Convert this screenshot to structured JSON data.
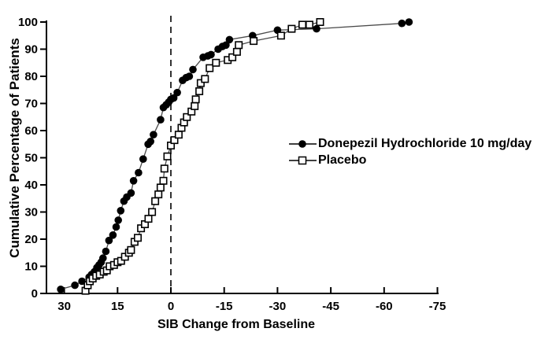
{
  "background_color": "#ffffff",
  "foreground_color": "#000000",
  "chart_data": {
    "type": "line",
    "subtype": "cumulative-distribution",
    "title": "",
    "xlabel": "SIB Change from Baseline",
    "ylabel": "Cumulative Percentage of Patients",
    "x_axis_reversed": true,
    "x_ticks": [
      30,
      15,
      0,
      -15,
      -30,
      -45,
      -60,
      -75
    ],
    "y_ticks": [
      0,
      10,
      20,
      30,
      40,
      50,
      60,
      70,
      80,
      90,
      100
    ],
    "xlim": [
      35,
      -76
    ],
    "ylim": [
      0,
      100
    ],
    "grid": false,
    "reference_line_x": 0,
    "legend_position": "middle-right",
    "series": [
      {
        "name": "Donepezil Hydrochloride 10 mg/day",
        "marker": "filled-circle",
        "marker_color": "#000000",
        "line_color": "#4a4a4a",
        "points": [
          [
            31,
            1.5
          ],
          [
            27,
            3
          ],
          [
            25,
            4.5
          ],
          [
            23,
            6
          ],
          [
            22.3,
            7
          ],
          [
            21.5,
            8
          ],
          [
            20.8,
            9.5
          ],
          [
            20.2,
            10.5
          ],
          [
            19.6,
            11.5
          ],
          [
            19.1,
            13
          ],
          [
            18.3,
            15.5
          ],
          [
            17.4,
            19.5
          ],
          [
            16.3,
            21.5
          ],
          [
            15.4,
            24.5
          ],
          [
            14.8,
            27
          ],
          [
            14.1,
            30.5
          ],
          [
            13.2,
            34
          ],
          [
            12.4,
            35.5
          ],
          [
            11.2,
            37
          ],
          [
            10.5,
            41.5
          ],
          [
            9.1,
            44.5
          ],
          [
            7.8,
            49.5
          ],
          [
            6.4,
            55
          ],
          [
            5.7,
            56
          ],
          [
            4.9,
            58.5
          ],
          [
            2.9,
            64
          ],
          [
            2.1,
            68.5
          ],
          [
            1.3,
            69.5
          ],
          [
            0.6,
            70.5
          ],
          [
            0,
            71.5
          ],
          [
            -0.8,
            72
          ],
          [
            -1.8,
            74
          ],
          [
            -3.3,
            78.5
          ],
          [
            -4.3,
            79.5
          ],
          [
            -5.2,
            80
          ],
          [
            -6.2,
            82.5
          ],
          [
            -9.1,
            87
          ],
          [
            -10.4,
            87.5
          ],
          [
            -11.3,
            88
          ],
          [
            -13.3,
            90
          ],
          [
            -14.5,
            91
          ],
          [
            -15.5,
            91.5
          ],
          [
            -16.5,
            93.5
          ],
          [
            -23,
            95
          ],
          [
            -30,
            97
          ],
          [
            -41,
            97.5
          ],
          [
            -65,
            99.5
          ],
          [
            -67,
            100
          ]
        ]
      },
      {
        "name": "Placebo",
        "marker": "open-square",
        "marker_color": "#000000",
        "marker_fill": "#ffffff",
        "line_color": "#4a4a4a",
        "points": [
          [
            24,
            1
          ],
          [
            23.4,
            3
          ],
          [
            22.8,
            4.5
          ],
          [
            22,
            5.5
          ],
          [
            21,
            6.5
          ],
          [
            20,
            7
          ],
          [
            18.9,
            8
          ],
          [
            18,
            8.5
          ],
          [
            17.2,
            10
          ],
          [
            16,
            10.5
          ],
          [
            15,
            11.5
          ],
          [
            14,
            12
          ],
          [
            12.9,
            13.5
          ],
          [
            11.8,
            15
          ],
          [
            11.2,
            16
          ],
          [
            10.2,
            19
          ],
          [
            9.3,
            20.5
          ],
          [
            8.4,
            24
          ],
          [
            7.3,
            25.5
          ],
          [
            6.3,
            27.5
          ],
          [
            5.3,
            30
          ],
          [
            4.4,
            34
          ],
          [
            3.5,
            36.5
          ],
          [
            2.9,
            39
          ],
          [
            2.1,
            41.5
          ],
          [
            1.8,
            46
          ],
          [
            1,
            50.5
          ],
          [
            0,
            54.5
          ],
          [
            -1,
            56.5
          ],
          [
            -2.2,
            58.5
          ],
          [
            -3,
            61
          ],
          [
            -3.7,
            63
          ],
          [
            -4.5,
            65
          ],
          [
            -5.8,
            67
          ],
          [
            -6.7,
            69
          ],
          [
            -7,
            71.5
          ],
          [
            -8,
            74.5
          ],
          [
            -8.4,
            77.5
          ],
          [
            -9.6,
            79
          ],
          [
            -10.9,
            83
          ],
          [
            -12.7,
            85
          ],
          [
            -16,
            86
          ],
          [
            -17.3,
            87
          ],
          [
            -18.6,
            89
          ],
          [
            -19.1,
            91.5
          ],
          [
            -23.3,
            93
          ],
          [
            -31,
            95
          ],
          [
            -34,
            97.5
          ],
          [
            -37,
            99
          ],
          [
            -39,
            99
          ],
          [
            -42,
            100
          ]
        ]
      }
    ]
  }
}
